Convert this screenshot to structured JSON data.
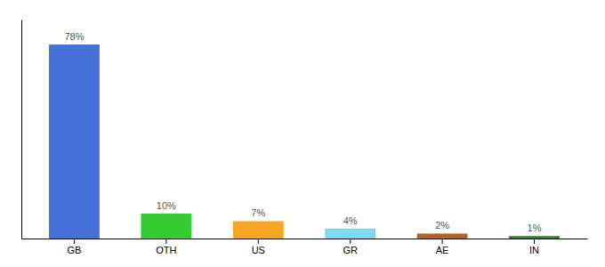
{
  "chart_data": {
    "type": "bar",
    "categories": [
      "GB",
      "OTH",
      "US",
      "GR",
      "AE",
      "IN"
    ],
    "values": [
      78,
      10,
      7,
      4,
      2,
      1
    ],
    "value_labels": [
      "78%",
      "10%",
      "7%",
      "4%",
      "2%",
      "1%"
    ],
    "colors": [
      "#4472d9",
      "#33cc33",
      "#f5a623",
      "#7dd8f0",
      "#b5651d",
      "#228B22"
    ],
    "ylim": [
      0,
      88
    ],
    "yticks": [],
    "grid": false,
    "data_labels": true,
    "tick_labels": "x"
  }
}
